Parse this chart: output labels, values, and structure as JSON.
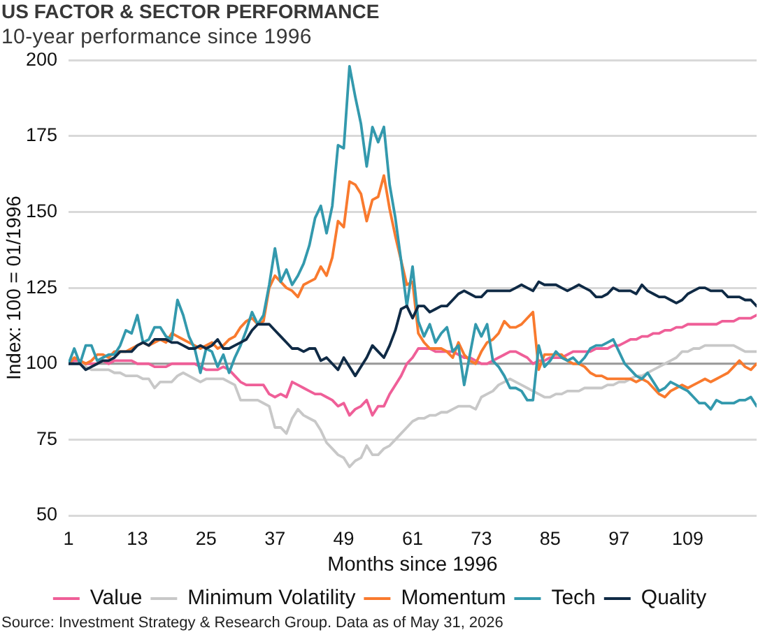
{
  "chart_data": {
    "type": "line",
    "title": "US FACTOR & SECTOR PERFORMANCE",
    "subtitle": "10-year performance since 1996",
    "xlabel": "Months since 1996",
    "ylabel": "Index: 100 = 01/1996",
    "annotations": [
      "Source: Investment Strategy & Research Group. Data as of May 31, 2026"
    ],
    "x": [
      1,
      2,
      3,
      4,
      5,
      6,
      7,
      8,
      9,
      10,
      11,
      12,
      13,
      14,
      15,
      16,
      17,
      18,
      19,
      20,
      21,
      22,
      23,
      24,
      25,
      26,
      27,
      28,
      29,
      30,
      31,
      32,
      33,
      34,
      35,
      36,
      37,
      38,
      39,
      40,
      41,
      42,
      43,
      44,
      45,
      46,
      47,
      48,
      49,
      50,
      51,
      52,
      53,
      54,
      55,
      56,
      57,
      58,
      59,
      60,
      61,
      62,
      63,
      64,
      65,
      66,
      67,
      68,
      69,
      70,
      71,
      72,
      73,
      74,
      75,
      76,
      77,
      78,
      79,
      80,
      81,
      82,
      83,
      84,
      85,
      86,
      87,
      88,
      89,
      90,
      91,
      92,
      93,
      94,
      95,
      96,
      97,
      98,
      99,
      100,
      101,
      102,
      103,
      104,
      105,
      106,
      107,
      108,
      109,
      110,
      111,
      112,
      113,
      114,
      115,
      116,
      117,
      118,
      119,
      120,
      121
    ],
    "series": [
      {
        "name": "Value",
        "color": "#ef5f98",
        "values": [
          100,
          101,
          101,
          100,
          100,
          100,
          101,
          100,
          101,
          101,
          101,
          101,
          100,
          100,
          100,
          99,
          99,
          99,
          100,
          100,
          100,
          100,
          100,
          99,
          98,
          98,
          98,
          99,
          98,
          96,
          94,
          93,
          93,
          93,
          93,
          90,
          89,
          90,
          89,
          94,
          93,
          92,
          91,
          90,
          90,
          89,
          88,
          86,
          87,
          83,
          85,
          86,
          88,
          83,
          86,
          86,
          90,
          93,
          96,
          100,
          102,
          105,
          105,
          105,
          104,
          104,
          104,
          104,
          103,
          102,
          102,
          101,
          100,
          100,
          101,
          102,
          103,
          104,
          104,
          103,
          102,
          100,
          101,
          101,
          102,
          102,
          102,
          103,
          104,
          104,
          104,
          104,
          105,
          105,
          105,
          106,
          106,
          107,
          108,
          108,
          109,
          109,
          110,
          110,
          111,
          111,
          112,
          112,
          113,
          113,
          113,
          113,
          113,
          113,
          114,
          114,
          114,
          115,
          115,
          115,
          116
        ]
      },
      {
        "name": "Minimum Volatility",
        "color": "#c8c8c8",
        "values": [
          100,
          100,
          100,
          99,
          98,
          98,
          98,
          98,
          97,
          97,
          96,
          96,
          96,
          95,
          95,
          92,
          94,
          94,
          94,
          96,
          97,
          96,
          95,
          94,
          95,
          95,
          95,
          95,
          94,
          93,
          88,
          88,
          88,
          88,
          87,
          86,
          79,
          79,
          77,
          82,
          85,
          83,
          82,
          81,
          78,
          74,
          72,
          70,
          69,
          66,
          68,
          69,
          73,
          70,
          70,
          72,
          73,
          75,
          77,
          79,
          81,
          82,
          82,
          83,
          83,
          84,
          84,
          85,
          86,
          86,
          86,
          85,
          89,
          90,
          91,
          93,
          94,
          95,
          94,
          93,
          92,
          91,
          90,
          89,
          89,
          90,
          90,
          91,
          91,
          91,
          92,
          92,
          92,
          92,
          93,
          93,
          94,
          94,
          95,
          96,
          96,
          97,
          98,
          99,
          100,
          101,
          102,
          104,
          104,
          105,
          105,
          106,
          106,
          106,
          106,
          106,
          106,
          105,
          104,
          104,
          104
        ]
      },
      {
        "name": "Momentum",
        "color": "#f97a2e",
        "values": [
          100,
          102,
          101,
          100,
          101,
          103,
          103,
          102,
          104,
          104,
          104,
          105,
          106,
          107,
          106,
          107,
          108,
          107,
          110,
          109,
          108,
          107,
          106,
          105,
          106,
          107,
          105,
          106,
          108,
          109,
          112,
          114,
          115,
          113,
          114,
          125,
          129,
          127,
          125,
          124,
          122,
          126,
          127,
          128,
          132,
          129,
          135,
          147,
          145,
          160,
          159,
          156,
          147,
          154,
          155,
          162,
          151,
          142,
          134,
          126,
          127,
          110,
          107,
          105,
          105,
          105,
          104,
          102,
          107,
          103,
          101,
          100,
          104,
          107,
          108,
          110,
          114,
          112,
          112,
          113,
          115,
          117,
          98,
          103,
          103,
          103,
          103,
          101,
          100,
          100,
          99,
          97,
          96,
          96,
          95,
          95,
          95,
          95,
          95,
          94,
          95,
          94,
          92,
          90,
          89,
          91,
          92,
          93,
          92,
          93,
          94,
          95,
          94,
          95,
          96,
          97,
          99,
          101,
          99,
          98,
          100
        ]
      },
      {
        "name": "Tech",
        "color": "#3399ad",
        "values": [
          100,
          105,
          100,
          106,
          106,
          101,
          102,
          103,
          103,
          106,
          111,
          110,
          116,
          107,
          108,
          112,
          112,
          109,
          108,
          121,
          116,
          109,
          105,
          97,
          105,
          104,
          99,
          103,
          97,
          102,
          106,
          111,
          117,
          113,
          116,
          126,
          138,
          127,
          131,
          126,
          129,
          133,
          139,
          148,
          152,
          143,
          152,
          172,
          171,
          198,
          188,
          179,
          165,
          178,
          173,
          178,
          159,
          148,
          134,
          119,
          132,
          114,
          109,
          113,
          107,
          110,
          112,
          104,
          106,
          93,
          103,
          113,
          109,
          113,
          101,
          99,
          96,
          92,
          92,
          91,
          88,
          88,
          106,
          99,
          101,
          104,
          102,
          101,
          102,
          100,
          102,
          105,
          106,
          106,
          107,
          108,
          104,
          100,
          98,
          96,
          95,
          97,
          94,
          91,
          92,
          94,
          93,
          92,
          91,
          89,
          87,
          87,
          85,
          88,
          87,
          87,
          87,
          88,
          88,
          89,
          86
        ]
      },
      {
        "name": "Quality",
        "color": "#0f2a45",
        "values": [
          100,
          100,
          100,
          98,
          99,
          100,
          101,
          101,
          102,
          104,
          104,
          104,
          106,
          107,
          106,
          108,
          108,
          108,
          107,
          107,
          106,
          105,
          105,
          106,
          105,
          106,
          108,
          105,
          105,
          106,
          107,
          108,
          111,
          113,
          113,
          113,
          111,
          109,
          107,
          105,
          105,
          104,
          105,
          105,
          101,
          102,
          100,
          98,
          102,
          99,
          96,
          99,
          102,
          106,
          104,
          102,
          106,
          111,
          118,
          119,
          115,
          119,
          119,
          117,
          118,
          119,
          119,
          121,
          123,
          124,
          123,
          122,
          122,
          124,
          124,
          124,
          124,
          124,
          125,
          126,
          125,
          124,
          127,
          126,
          126,
          126,
          125,
          124,
          125,
          126,
          125,
          124,
          122,
          122,
          123,
          125,
          124,
          124,
          124,
          123,
          126,
          124,
          123,
          122,
          122,
          121,
          120,
          121,
          123,
          124,
          125,
          125,
          124,
          124,
          124,
          122,
          122,
          122,
          121,
          121,
          119
        ]
      }
    ],
    "xlim": [
      1,
      121
    ],
    "xticks": [
      1,
      13,
      25,
      37,
      49,
      61,
      73,
      85,
      97,
      109
    ],
    "ylim": [
      50,
      200
    ],
    "yticks": [
      50,
      75,
      100,
      125,
      150,
      175,
      200
    ],
    "ref_lines": [
      {
        "axis": "y",
        "value": 100,
        "color": "#9a9a9a"
      }
    ],
    "grid": "y",
    "legend": "bottom"
  }
}
